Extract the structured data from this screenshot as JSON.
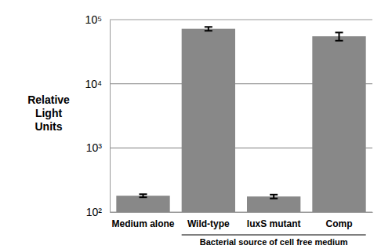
{
  "chart_data": {
    "type": "bar",
    "categories": [
      "Medium alone",
      "Wild-type",
      "luxS mutant",
      "Comp"
    ],
    "values": [
      180,
      72000,
      175,
      55000
    ],
    "errors": [
      10,
      5000,
      12,
      8000
    ],
    "color": "#888888",
    "ylim": [
      100,
      100000
    ],
    "yticks": [
      {
        "value": 100,
        "label": "10²"
      },
      {
        "value": 1000,
        "label": "10³"
      },
      {
        "value": 10000,
        "label": "10⁴"
      },
      {
        "value": 100000,
        "label": "10⁵"
      }
    ],
    "log": "y",
    "grid": true,
    "y_label": "Relative Light Units",
    "annotation": "Bacterial source of cell free medium"
  }
}
